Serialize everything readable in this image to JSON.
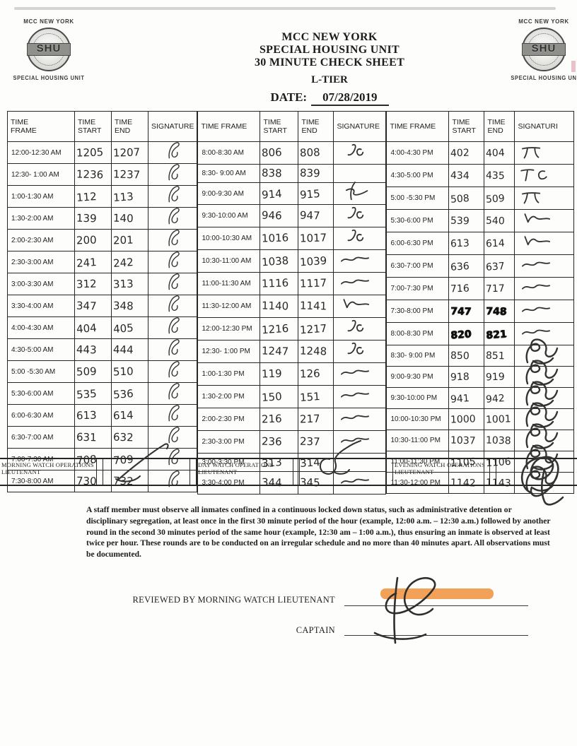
{
  "colors": {
    "highlight": "#F2923B",
    "ink": "#2B2B2B",
    "paper": "#FDFDFC"
  },
  "logos": {
    "left": {
      "top": "MCC NEW YORK",
      "seal": "SHU",
      "bottom": "SPECIAL HOUSING UNIT"
    },
    "right": {
      "top": "MCC NEW YORK",
      "seal": "SHU",
      "bottom": "SPECIAL HOUSING UN"
    }
  },
  "header": {
    "title_lines": [
      "MCC NEW YORK",
      "SPECIAL HOUSING UNIT",
      "30 MINUTE CHECK SHEET"
    ],
    "tier": "L-TIER",
    "date_label": "DATE:",
    "date_value": "07/28/2019"
  },
  "table": {
    "groups": [
      {
        "headers": [
          "TIME FRAME",
          "TIME START",
          "TIME END",
          "SIGNATURE"
        ],
        "rows": [
          {
            "frame": "12:00-12:30 AM",
            "start": "1205",
            "end": "1207",
            "sig": "loop"
          },
          {
            "frame": "12:30- 1:00 AM",
            "start": "1236",
            "end": "1237",
            "sig": "loop"
          },
          {
            "frame": "1:00-1:30 AM",
            "start": "112",
            "end": "113",
            "sig": "loop"
          },
          {
            "frame": "1:30-2:00 AM",
            "start": "139",
            "end": "140",
            "sig": "loop"
          },
          {
            "frame": "2:00-2:30 AM",
            "start": "200",
            "end": "201",
            "sig": "loop"
          },
          {
            "frame": "2:30-3:00 AM",
            "start": "241",
            "end": "242",
            "sig": "loop"
          },
          {
            "frame": "3:00-3:30 AM",
            "start": "312",
            "end": "313",
            "sig": "loop"
          },
          {
            "frame": "3:30-4:00 AM",
            "start": "347",
            "end": "348",
            "sig": "loop"
          },
          {
            "frame": "4:00-4:30 AM",
            "start": "404",
            "end": "405",
            "sig": "loop"
          },
          {
            "frame": "4:30-5:00 AM",
            "start": "443",
            "end": "444",
            "sig": "loop"
          },
          {
            "frame": "5:00 -5:30 AM",
            "start": "509",
            "end": "510",
            "sig": "loop"
          },
          {
            "frame": "5:30-6:00 AM",
            "start": "535",
            "end": "536",
            "sig": "loop"
          },
          {
            "frame": "6:00-6:30 AM",
            "start": "613",
            "end": "614",
            "sig": "loop"
          },
          {
            "frame": "6:30-7:00 AM",
            "start": "631",
            "end": "632",
            "sig": "loop"
          },
          {
            "frame": "7:00-7:30 AM",
            "start": "708",
            "end": "709",
            "sig": "loop"
          },
          {
            "frame": "7:30-8:00 AM",
            "start": "730",
            "end": "732",
            "sig": "loop"
          }
        ]
      },
      {
        "headers": [
          "TIME FRAME",
          "TIME START",
          "TIME END",
          "SIGNATURE"
        ],
        "rows": [
          {
            "frame": "8:00-8:30 AM",
            "start": "806",
            "end": "808",
            "sig": "jc"
          },
          {
            "frame": "8:30- 9:00 AM",
            "start": "838",
            "end": "839",
            "sig": ""
          },
          {
            "frame": "9:00-9:30 AM",
            "start": "914",
            "end": "915",
            "sig": "fwave"
          },
          {
            "frame": "9:30-10:00 AM",
            "start": "946",
            "end": "947",
            "sig": "jc"
          },
          {
            "frame": "10:00-10:30 AM",
            "start": "1016",
            "end": "1017",
            "sig": "jc"
          },
          {
            "frame": "10:30-11:00 AM",
            "start": "1038",
            "end": "1039",
            "sig": "wave"
          },
          {
            "frame": "11:00-11:30 AM",
            "start": "1116",
            "end": "1117",
            "sig": "wave"
          },
          {
            "frame": "11:30-12:00 AM",
            "start": "1140",
            "end": "1141",
            "sig": "check"
          },
          {
            "frame": "12:00-12:30 PM",
            "start": "1216",
            "end": "1217",
            "sig": "jc"
          },
          {
            "frame": "12:30- 1:00 PM",
            "start": "1247",
            "end": "1248",
            "sig": "jc"
          },
          {
            "frame": "1:00-1:30 PM",
            "start": "119",
            "end": "126",
            "sig": "wave"
          },
          {
            "frame": "1:30-2:00 PM",
            "start": "150",
            "end": "151",
            "sig": "wave"
          },
          {
            "frame": "2:00-2:30 PM",
            "start": "216",
            "end": "217",
            "sig": "wave"
          },
          {
            "frame": "2:30-3:00 PM",
            "start": "236",
            "end": "237",
            "sig": "wave"
          },
          {
            "frame": "3:00-3:30 PM",
            "start": "313",
            "end": "314",
            "sig": ""
          },
          {
            "frame": "3:30-4:00 PM",
            "start": "344",
            "end": "345",
            "sig": "wave"
          }
        ]
      },
      {
        "headers": [
          "TIME FRAME",
          "TIME START",
          "TIME END",
          "SIGNATURI"
        ],
        "rows": [
          {
            "frame": "4:00-4:30 PM",
            "start": "402",
            "end": "404",
            "sig": "pi"
          },
          {
            "frame": "4:30-5:00 PM",
            "start": "434",
            "end": "435",
            "sig": "tc"
          },
          {
            "frame": "5:00 -5:30 PM",
            "start": "508",
            "end": "509",
            "sig": "pi"
          },
          {
            "frame": "5:30-6:00 PM",
            "start": "539",
            "end": "540",
            "sig": "check"
          },
          {
            "frame": "6:00-6:30 PM",
            "start": "613",
            "end": "614",
            "sig": "check"
          },
          {
            "frame": "6:30-7:00 PM",
            "start": "636",
            "end": "637",
            "sig": "wave"
          },
          {
            "frame": "7:00-7:30 PM",
            "start": "716",
            "end": "717",
            "sig": "wave"
          },
          {
            "frame": "7:30-8:00 PM",
            "start": "747",
            "end": "748",
            "sig": "wave",
            "heavy": true
          },
          {
            "frame": "8:00-8:30 PM",
            "start": "820",
            "end": "821",
            "sig": "wave",
            "heavy": true
          },
          {
            "frame": "8:30- 9:00 PM",
            "start": "850",
            "end": "851",
            "sig": "scrib"
          },
          {
            "frame": "9:00-9:30 PM",
            "start": "918",
            "end": "919",
            "sig": "scrib"
          },
          {
            "frame": "9:30-10:00 PM",
            "start": "941",
            "end": "942",
            "sig": "scrib"
          },
          {
            "frame": "10:00-10:30 PM",
            "start": "1000",
            "end": "1001",
            "sig": "scrib"
          },
          {
            "frame": "10:30-11:00 PM",
            "start": "1037",
            "end": "1038",
            "sig": "scrib"
          },
          {
            "frame": "11:00-11:30 PM",
            "start": "1105",
            "end": "1106",
            "sig": "scrib"
          },
          {
            "frame": "11:30-12:00 PM",
            "start": "1142",
            "end": "1143",
            "sig": "scrib"
          }
        ]
      }
    ]
  },
  "watch_row": {
    "cells": [
      {
        "type": "label",
        "text": "MORNING WATCH OPERATIONS LIEUTENANT"
      },
      {
        "type": "sig",
        "sig": "hook"
      },
      {
        "type": "label",
        "text": "DAY WATCH OPERATIONS LIEUTENANT"
      },
      {
        "type": "sig",
        "sig": "hook2"
      },
      {
        "type": "label",
        "text": "EVENING WATCH OPERATIONS LIEUTENANT"
      },
      {
        "type": "sig",
        "sig": "bigscrib"
      }
    ]
  },
  "notice": "A staff member must observe all inmates confined in a continuous locked down status, such as administrative detention or disciplinary segregation, at least once in the first 30 minute period of the hour (example, 12:00 a.m. – 12:30 a.m.) followed by another round in the second 30 minutes period of the same hour (example, 12:30 am – 1:00 a.m.), thus ensuring an inmate is observed at least twice per hour. These rounds are to be conducted on an irregular schedule and no more than 40 minutes apart. All observations must be documented.",
  "review": {
    "reviewed_label": "REVIEWED BY MORNING WATCH LIEUTENANT",
    "captain_label": "CAPTAIN"
  }
}
